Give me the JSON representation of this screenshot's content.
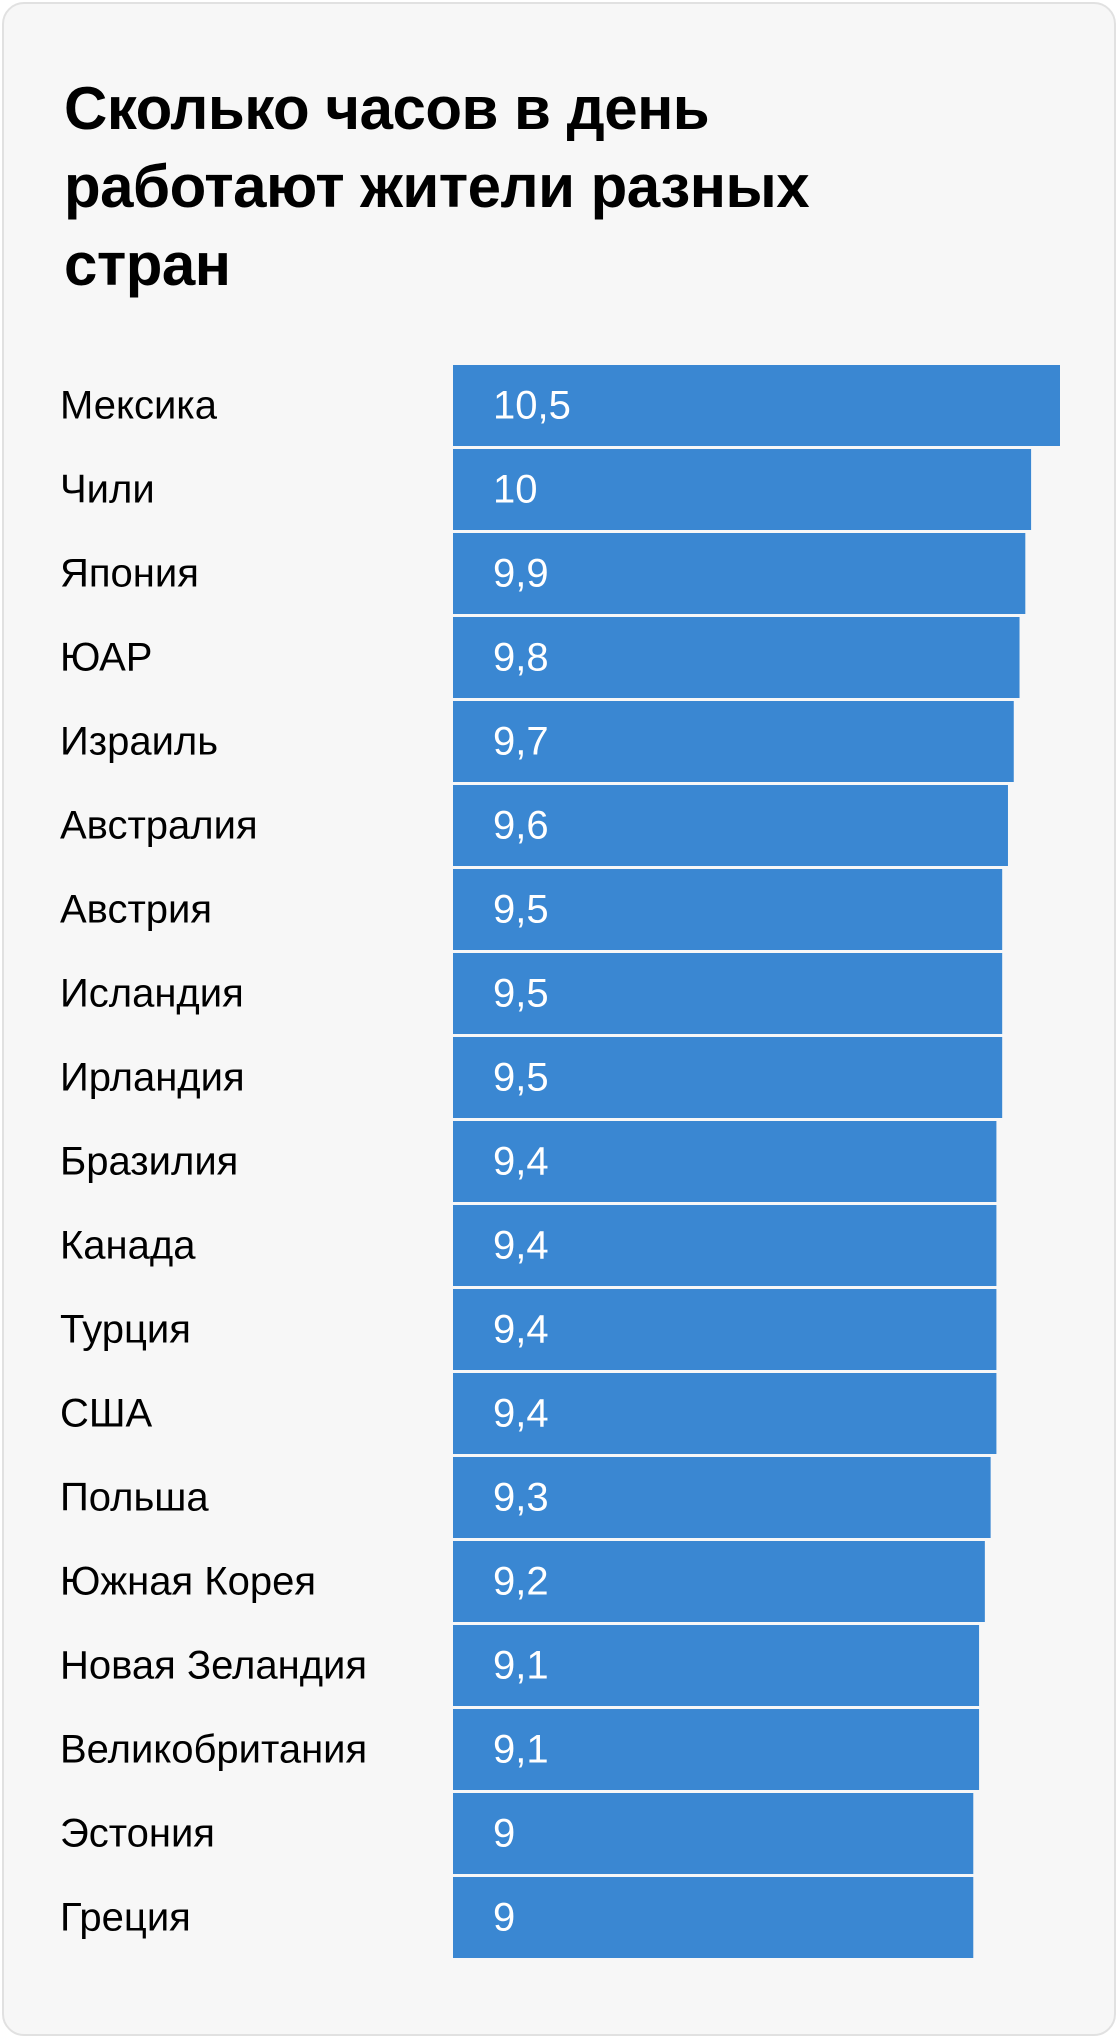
{
  "colors": {
    "bar": "#3a87d2",
    "background": "#f7f7f7",
    "border": "#e1e1e1",
    "text": "#000000",
    "value_text": "#ffffff"
  },
  "chart_data": {
    "type": "bar",
    "orientation": "horizontal",
    "title": "Сколько часов в день работают жители разных стран",
    "xlabel": "",
    "ylabel": "",
    "xlim": [
      0,
      10.5
    ],
    "grid": false,
    "legend": "none",
    "categories": [
      "Мексика",
      "Чили",
      "Япония",
      "ЮАР",
      "Израиль",
      "Австралия",
      "Австрия",
      "Исландия",
      "Ирландия",
      "Бразилия",
      "Канада",
      "Турция",
      "США",
      "Польша",
      "Южная Корея",
      "Новая Зеландия",
      "Великобритания",
      "Эстония",
      "Греция"
    ],
    "values": [
      10.5,
      10,
      9.9,
      9.8,
      9.7,
      9.6,
      9.5,
      9.5,
      9.5,
      9.4,
      9.4,
      9.4,
      9.4,
      9.3,
      9.2,
      9.1,
      9.1,
      9,
      9
    ],
    "value_labels": [
      "10,5",
      "10",
      "9,9",
      "9,8",
      "9,7",
      "9,6",
      "9,5",
      "9,5",
      "9,5",
      "9,4",
      "9,4",
      "9,4",
      "9,4",
      "9,3",
      "9,2",
      "9,1",
      "9,1",
      "9",
      "9"
    ]
  }
}
